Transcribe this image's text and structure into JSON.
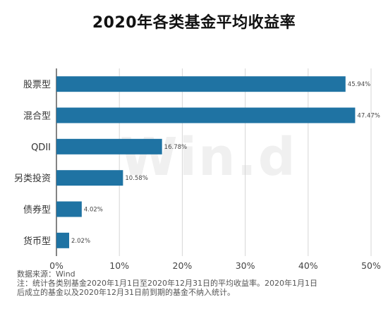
{
  "title": "2020年各类基金平均收益率",
  "watermark": "Win.d",
  "notes": {
    "source": "数据来源：Wind",
    "line1": "注：统计各类别基金2020年1月1日至2020年12月31日的平均收益率。2020年1月1日",
    "line2": "后成立的基金以及2020年12月31日前到期的基金不纳入统计。"
  },
  "colors": {
    "bar": "#1f73a3",
    "grid": "#d6d6d6",
    "axis": "#333333"
  },
  "chart_data": {
    "type": "bar",
    "orientation": "horizontal",
    "categories": [
      "股票型",
      "混合型",
      "QDII",
      "另类投资",
      "债券型",
      "货币型"
    ],
    "values": [
      45.94,
      47.47,
      16.78,
      10.58,
      4.02,
      2.02
    ],
    "value_labels": [
      "45.94%",
      "47.47%",
      "16.78%",
      "10.58%",
      "4.02%",
      "2.02%"
    ],
    "xlim": [
      0,
      50
    ],
    "xticks": [
      0,
      10,
      20,
      30,
      40,
      50
    ],
    "xtick_labels": [
      "0%",
      "10%",
      "20%",
      "30%",
      "40%",
      "50%"
    ],
    "grid": true
  }
}
